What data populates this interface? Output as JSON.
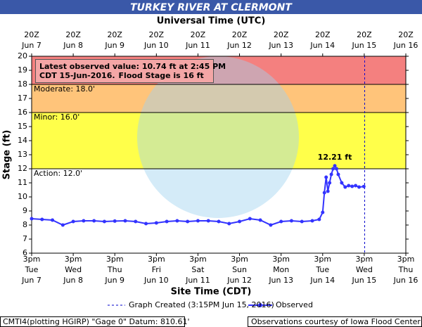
{
  "chart_data": {
    "type": "line",
    "title": "TURKEY RIVER AT CLERMONT",
    "top_axis_title": "Universal Time (UTC)",
    "x_label": "Site Time (CDT)",
    "y_label": "Stage (ft)",
    "xlim": [
      "2016-06-07T15:00",
      "2016-06-16T15:00"
    ],
    "ylim": [
      6,
      20
    ],
    "yticks": [
      6,
      7,
      8,
      9,
      10,
      11,
      12,
      13,
      14,
      15,
      16,
      17,
      18,
      19,
      20
    ],
    "xticks": [
      {
        "value": "2016-06-07T15:00",
        "label": [
          "3pm",
          "Tue",
          "Jun 7"
        ]
      },
      {
        "value": "2016-06-08T15:00",
        "label": [
          "3pm",
          "Wed",
          "Jun 8"
        ]
      },
      {
        "value": "2016-06-09T15:00",
        "label": [
          "3pm",
          "Thu",
          "Jun 9"
        ]
      },
      {
        "value": "2016-06-10T15:00",
        "label": [
          "3pm",
          "Fri",
          "Jun 10"
        ]
      },
      {
        "value": "2016-06-11T15:00",
        "label": [
          "3pm",
          "Sat",
          "Jun 11"
        ]
      },
      {
        "value": "2016-06-12T15:00",
        "label": [
          "3pm",
          "Sun",
          "Jun 12"
        ]
      },
      {
        "value": "2016-06-13T15:00",
        "label": [
          "3pm",
          "Mon",
          "Jun 13"
        ]
      },
      {
        "value": "2016-06-14T15:00",
        "label": [
          "3pm",
          "Tue",
          "Jun 14"
        ]
      },
      {
        "value": "2016-06-15T15:00",
        "label": [
          "3pm",
          "Wed",
          "Jun 15"
        ]
      },
      {
        "value": "2016-06-16T15:00",
        "label": [
          "3pm",
          "Thu",
          "Jun 16"
        ]
      }
    ],
    "top_xticks": [
      {
        "value": "2016-06-07T15:00",
        "label": [
          "20Z",
          "Jun 7"
        ]
      },
      {
        "value": "2016-06-08T15:00",
        "label": [
          "20Z",
          "Jun 8"
        ]
      },
      {
        "value": "2016-06-09T15:00",
        "label": [
          "20Z",
          "Jun 9"
        ]
      },
      {
        "value": "2016-06-10T15:00",
        "label": [
          "20Z",
          "Jun 10"
        ]
      },
      {
        "value": "2016-06-11T15:00",
        "label": [
          "20Z",
          "Jun 11"
        ]
      },
      {
        "value": "2016-06-12T15:00",
        "label": [
          "20Z",
          "Jun 12"
        ]
      },
      {
        "value": "2016-06-13T15:00",
        "label": [
          "20Z",
          "Jun 13"
        ]
      },
      {
        "value": "2016-06-14T15:00",
        "label": [
          "20Z",
          "Jun 14"
        ]
      },
      {
        "value": "2016-06-15T15:00",
        "label": [
          "20Z",
          "Jun 15"
        ]
      },
      {
        "value": "2016-06-16T15:00",
        "label": [
          "20Z",
          "Jun 16"
        ]
      }
    ],
    "stages": [
      {
        "label": "Moderate: 18.0'",
        "value": 18,
        "color": "#f4807f"
      },
      {
        "label": "Minor: 16.0'",
        "value": 16,
        "color": "#ffc47a"
      },
      {
        "label": "Action: 12.0'",
        "value": 12,
        "color": "#ffff4a"
      }
    ],
    "x": [
      "2016-06-07T15:00",
      "2016-06-07T21:00",
      "2016-06-08T03:00",
      "2016-06-08T09:00",
      "2016-06-08T15:00",
      "2016-06-08T21:00",
      "2016-06-09T03:00",
      "2016-06-09T09:00",
      "2016-06-09T15:00",
      "2016-06-09T21:00",
      "2016-06-10T03:00",
      "2016-06-10T09:00",
      "2016-06-10T15:00",
      "2016-06-10T21:00",
      "2016-06-11T03:00",
      "2016-06-11T09:00",
      "2016-06-11T15:00",
      "2016-06-11T21:00",
      "2016-06-12T03:00",
      "2016-06-12T09:00",
      "2016-06-12T15:00",
      "2016-06-12T21:00",
      "2016-06-13T03:00",
      "2016-06-13T09:00",
      "2016-06-13T15:00",
      "2016-06-13T21:00",
      "2016-06-14T03:00",
      "2016-06-14T09:00",
      "2016-06-14T13:00",
      "2016-06-14T15:00",
      "2016-06-14T16:00",
      "2016-06-14T17:00",
      "2016-06-14T18:00",
      "2016-06-14T19:00",
      "2016-06-14T20:00",
      "2016-06-14T21:00",
      "2016-06-14T22:00",
      "2016-06-14T23:00",
      "2016-06-15T00:00",
      "2016-06-15T02:00",
      "2016-06-15T04:00",
      "2016-06-15T06:00",
      "2016-06-15T08:00",
      "2016-06-15T10:00",
      "2016-06-15T12:00",
      "2016-06-15T14:45"
    ],
    "series": [
      {
        "name": "Observed",
        "color": "#3333ff",
        "values": [
          8.45,
          8.4,
          8.35,
          8.0,
          8.25,
          8.3,
          8.3,
          8.25,
          8.28,
          8.3,
          8.25,
          8.1,
          8.15,
          8.25,
          8.3,
          8.25,
          8.3,
          8.3,
          8.25,
          8.1,
          8.25,
          8.45,
          8.35,
          8.0,
          8.25,
          8.3,
          8.25,
          8.3,
          8.4,
          8.9,
          10.3,
          11.4,
          10.4,
          11.0,
          11.6,
          12.0,
          12.21,
          12.0,
          11.6,
          11.0,
          10.7,
          10.8,
          10.75,
          10.8,
          10.7,
          10.74
        ]
      }
    ],
    "peak_label": {
      "index": 36,
      "text": "12.21 ft"
    },
    "created_line": {
      "name": "Graph Created (3:15PM Jun 15, 2016)",
      "x": "2016-06-15T15:15",
      "color": "#0000cc"
    },
    "latest_box": {
      "line1": "Latest observed value: 10.74 ft at 2:45 PM",
      "line2": "CDT 15-Jun-2016.",
      "flood_stage": "Flood Stage is 16 ft"
    },
    "footer_left": "CMTI4(plotting HGIRP) \"Gage 0\" Datum: 810.61'",
    "footer_right": "Observations courtesy of Iowa Flood Center"
  }
}
